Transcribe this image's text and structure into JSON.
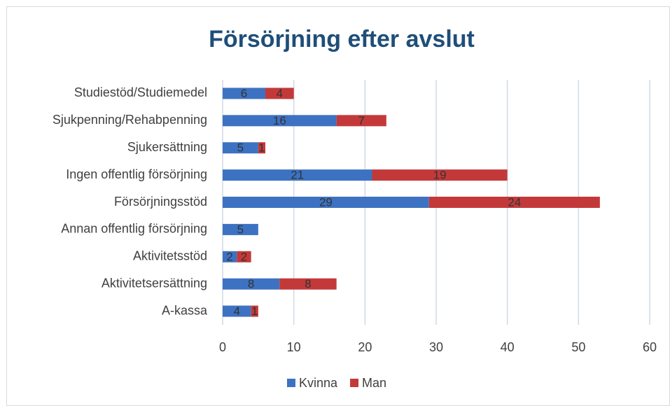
{
  "chart_data": {
    "type": "bar",
    "orientation": "horizontal",
    "stacked": true,
    "title": "Försörjning efter avslut",
    "categories": [
      "Studiestöd/Studiemedel",
      "Sjukpenning/Rehabpenning",
      "Sjukersättning",
      "Ingen offentlig försörjning",
      "Försörjningsstöd",
      "Annan offentlig försörjning",
      "Aktivitetsstöd",
      "Aktivitetsersättning",
      "A-kassa"
    ],
    "series": [
      {
        "name": "Kvinna",
        "color": "#3d72c2",
        "values": [
          6,
          16,
          5,
          21,
          29,
          5,
          2,
          8,
          4
        ]
      },
      {
        "name": "Man",
        "color": "#c3393a",
        "values": [
          4,
          7,
          1,
          19,
          24,
          null,
          2,
          8,
          1
        ]
      }
    ],
    "xlim": [
      0,
      60
    ],
    "xticks": [
      0,
      10,
      20,
      30,
      40,
      50,
      60
    ],
    "grid": true,
    "legend": "bottom"
  }
}
